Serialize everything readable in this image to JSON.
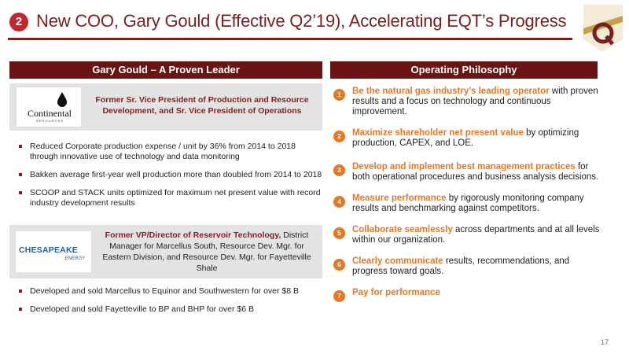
{
  "header": {
    "badge": "2",
    "title": "New COO, Gary Gould (Effective Q2’19), Accelerating EQT’s Progress"
  },
  "left_panel": {
    "heading": "Gary Gould – A Proven Leader",
    "role1": {
      "company_logo": "Continental",
      "company_tagline": "R E S O U R C E S",
      "text": "Former Sr. Vice President of Production and Resource Development, and Sr. Vice President of Operations"
    },
    "bullets1": [
      "Reduced Corporate production expense / unit by 36% from 2014 to 2018 through innovative use of technology and data monitoring",
      "Bakken average first-year well production more than doubled from 2014 to 2018",
      "SCOOP and STACK units optimized for maximum net present value with record industry development results"
    ],
    "role2": {
      "company_logo": "CHESAPEAKE",
      "company_tagline": "ENERGY",
      "text_highlight": "Former VP/Director of Reservoir Technology,",
      "text_rest": " District Manager for Marcellus South, Resource Dev. Mgr. for Eastern Division, and Resource Dev. Mgr. for Fayetteville Shale"
    },
    "bullets2": [
      "Developed and sold Marcellus to Equinor and Southwestern for over $8 B",
      "Developed and sold Fayetteville to BP and BHP for over $6 B"
    ]
  },
  "right_panel": {
    "heading": "Operating Philosophy",
    "items": [
      {
        "num": "1",
        "em": "Be the natural gas industry’s leading operator",
        "rest": " with proven results and a focus on technology and continuous improvement."
      },
      {
        "num": "2",
        "em": "Maximize shareholder net present value",
        "rest": " by optimizing production, CAPEX, and LOE."
      },
      {
        "num": "3",
        "em": "Develop and implement best management practices",
        "rest": " for both operational procedures and business analysis decisions."
      },
      {
        "num": "4",
        "em": "Measure performance",
        "rest": " by rigorously monitoring company results and benchmarking against competitors."
      },
      {
        "num": "5",
        "em": "Collaborate seamlessly",
        "rest": " across departments and at all levels within our organization."
      },
      {
        "num": "6",
        "em": "Clearly communicate",
        "rest": " results, recommendations, and progress toward goals."
      },
      {
        "num": "7",
        "em": "Pay for performance",
        "rest": ""
      }
    ]
  },
  "footer": {
    "page_number": "17"
  },
  "colors": {
    "brand": "#7a1f1f",
    "header_bg": "#6b1414",
    "accent": "#e87722",
    "badge": "#c1272d"
  }
}
